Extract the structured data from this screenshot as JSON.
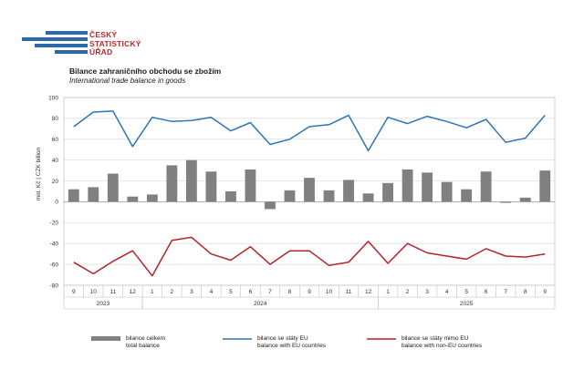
{
  "logo": {
    "lines": [
      "ČESKÝ",
      "STATISTICKÝ",
      "ÚŘAD"
    ]
  },
  "header": {
    "title": "Bilance zahraničního obchodu se zbožím",
    "subtitle": "International trade balance in goods"
  },
  "colors": {
    "total": "#808080",
    "eu": "#2e75b6",
    "non_eu": "#b8222a",
    "grid": "#d9d9d9",
    "brand_red": "#c0272d",
    "brand_blue": "#2b6aa8"
  },
  "chart_data": {
    "type": "bar",
    "ylabel": "mld. Kč | CZK billion",
    "ylim": [
      -80,
      100
    ],
    "yticks": [
      100,
      80,
      60,
      40,
      20,
      0,
      -20,
      -40,
      -60,
      -80
    ],
    "categories": [
      "9",
      "10",
      "11",
      "12",
      "1",
      "2",
      "3",
      "4",
      "5",
      "6",
      "7",
      "8",
      "9",
      "10",
      "11",
      "12",
      "1",
      "2",
      "3",
      "4",
      "5",
      "6",
      "7",
      "8",
      "9"
    ],
    "year_groups": [
      {
        "label": "2023",
        "start": 0,
        "end": 3
      },
      {
        "label": "2024",
        "start": 4,
        "end": 15
      },
      {
        "label": "2025",
        "start": 16,
        "end": 24
      }
    ],
    "series": [
      {
        "name": "bilance celkem / total balance",
        "type": "bar",
        "values": [
          12,
          14,
          27,
          5,
          7,
          35,
          40,
          29,
          10,
          31,
          -7,
          11,
          23,
          11,
          21,
          8,
          18,
          31,
          28,
          19,
          12,
          29,
          -1,
          4,
          30
        ]
      },
      {
        "name": "bilance se státy EU / balance with EU countries",
        "type": "line",
        "values": [
          72,
          86,
          87,
          53,
          81,
          77,
          78,
          81,
          68,
          76,
          55,
          60,
          72,
          74,
          83,
          49,
          81,
          75,
          82,
          77,
          71,
          79,
          57,
          61,
          83
        ]
      },
      {
        "name": "bilance se státy mimo EU / balance with non-EU countries",
        "type": "line",
        "values": [
          -58,
          -69,
          -57,
          -47,
          -71,
          -37,
          -34,
          -50,
          -56,
          -43,
          -60,
          -47,
          -47,
          -61,
          -58,
          -38,
          -59,
          -40,
          -49,
          -52,
          -55,
          -45,
          -52,
          -53,
          -50
        ]
      }
    ]
  },
  "legend": {
    "total": {
      "line1": "bilance celkem",
      "line2": "total balance"
    },
    "eu": {
      "line1": "bilance se státy EU",
      "line2": "balance with EU countries"
    },
    "non_eu": {
      "line1": "bilance se státy mimo EU",
      "line2": "balance with non-EU countries"
    }
  }
}
